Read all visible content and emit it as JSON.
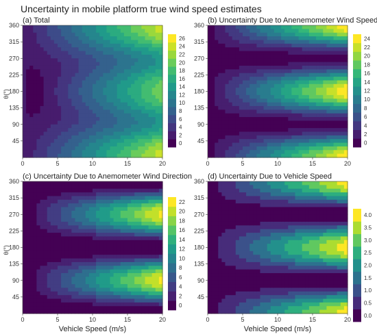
{
  "figure": {
    "title": "Uncertainty in mobile platform true wind speed estimates"
  },
  "colormap": [
    "#440154",
    "#482878",
    "#3e4989",
    "#31688e",
    "#26828e",
    "#1f9e89",
    "#35b779",
    "#6ece58",
    "#b5de2b",
    "#fde725"
  ],
  "chart_data": [
    {
      "type": "heatmap",
      "title": "(a) Total",
      "x_ticks": [
        "0",
        "5",
        "10",
        "15",
        "20"
      ],
      "y_ticks": [
        "45",
        "90",
        "135",
        "180",
        "225",
        "270",
        "315",
        "360"
      ],
      "xlabel": "",
      "ylabel": "θ(°)",
      "xlim": [
        0,
        20
      ],
      "ylim": [
        0,
        360
      ],
      "colorbar": {
        "ticks": [
          "0",
          "2",
          "4",
          "6",
          "8",
          "10",
          "12",
          "14",
          "16",
          "18",
          "20",
          "22",
          "24",
          "26"
        ],
        "range": [
          0,
          27
        ]
      },
      "field": "total"
    },
    {
      "type": "heatmap",
      "title": "(b) Uncertainty Due to Anenemometer Wind Speed",
      "x_ticks": [
        "0",
        "5",
        "10",
        "15",
        "20"
      ],
      "y_ticks": [
        "45",
        "90",
        "135",
        "180",
        "225",
        "270",
        "315",
        "360"
      ],
      "xlabel": "",
      "ylabel": "",
      "xlim": [
        0,
        20
      ],
      "ylim": [
        0,
        360
      ],
      "colorbar": {
        "ticks": [
          "0",
          "2",
          "4",
          "6",
          "8",
          "10",
          "12",
          "14",
          "16",
          "18",
          "20",
          "22",
          "24"
        ],
        "range": [
          0,
          25
        ]
      },
      "field": "ws"
    },
    {
      "type": "heatmap",
      "title": "(c) Uncertainty Due to Anemometer Wind Direction",
      "x_ticks": [
        "0",
        "5",
        "10",
        "15",
        "20"
      ],
      "y_ticks": [
        "45",
        "90",
        "135",
        "180",
        "225",
        "270",
        "315",
        "360"
      ],
      "xlabel": "Vehicle Speed (m/s)",
      "ylabel": "θ(°)",
      "xlim": [
        0,
        20
      ],
      "ylim": [
        0,
        360
      ],
      "colorbar": {
        "ticks": [
          "0",
          "2",
          "4",
          "6",
          "8",
          "10",
          "12",
          "14",
          "16",
          "18",
          "20",
          "22"
        ],
        "range": [
          0,
          23
        ]
      },
      "field": "wd"
    },
    {
      "type": "heatmap",
      "title": "(d) Uncertainty Due to Vehicle Speed",
      "x_ticks": [
        "0",
        "5",
        "10",
        "15",
        "20"
      ],
      "y_ticks": [
        "45",
        "90",
        "135",
        "180",
        "225",
        "270",
        "315",
        "360"
      ],
      "xlabel": "Vehicle Speed (m/s)",
      "ylabel": "",
      "xlim": [
        0,
        20
      ],
      "ylim": [
        0,
        360
      ],
      "colorbar": {
        "ticks": [
          "0.0",
          "0.5",
          "1.0",
          "1.5",
          "2.0",
          "2.5",
          "3.0",
          "3.5",
          "4.0"
        ],
        "range": [
          0,
          4.1
        ]
      },
      "field": "vs"
    }
  ]
}
